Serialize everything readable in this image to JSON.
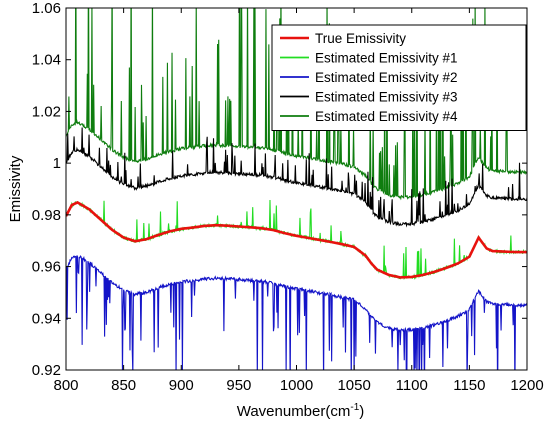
{
  "chart_data": {
    "type": "line",
    "title": "",
    "xlabel": "Wavenumber(cm",
    "xlabel_sup": "-1",
    "xlabel_suffix": ")",
    "ylabel": "Emissivity",
    "xlim": [
      800,
      1200
    ],
    "ylim": [
      0.92,
      1.06
    ],
    "x_ticks": [
      "800",
      "850",
      "900",
      "950",
      "1000",
      "1050",
      "1100",
      "1150",
      "1200"
    ],
    "y_ticks": [
      "0.92",
      "0.94",
      "0.96",
      "0.98",
      "1",
      "1.02",
      "1.04",
      "1.06"
    ],
    "grid": false,
    "legend_position": "top-right",
    "series": [
      {
        "name": "True Emissivity",
        "color": "#e8120e",
        "x": [
          800,
          805,
          810,
          820,
          830,
          840,
          850,
          860,
          870,
          880,
          890,
          900,
          910,
          920,
          930,
          940,
          950,
          960,
          970,
          980,
          990,
          1000,
          1010,
          1020,
          1030,
          1040,
          1050,
          1060,
          1065,
          1070,
          1080,
          1090,
          1100,
          1110,
          1120,
          1130,
          1140,
          1150,
          1158,
          1165,
          1170,
          1180,
          1190,
          1200
        ],
        "values": [
          0.9795,
          0.9838,
          0.9848,
          0.9822,
          0.9782,
          0.9742,
          0.9712,
          0.9698,
          0.9706,
          0.9722,
          0.9736,
          0.9746,
          0.9751,
          0.9757,
          0.976,
          0.9758,
          0.9755,
          0.9752,
          0.9748,
          0.9741,
          0.9729,
          0.9719,
          0.9711,
          0.9703,
          0.9695,
          0.9686,
          0.9676,
          0.9642,
          0.9612,
          0.9588,
          0.9568,
          0.9558,
          0.956,
          0.9568,
          0.958,
          0.9595,
          0.9612,
          0.9638,
          0.9712,
          0.967,
          0.966,
          0.9658,
          0.9656,
          0.9656
        ]
      },
      {
        "name": "Estimated Emissivity #1",
        "color": "#22dd22",
        "offset": 0.0,
        "spike_direction": "up",
        "spike_count": 35,
        "spike_height_max": 0.012
      },
      {
        "name": "Estimated Emissivity #2",
        "color": "#1414c8",
        "offset": -0.0205,
        "spike_direction": "down",
        "spike_count": 90,
        "spike_height_max": 0.04
      },
      {
        "name": "Estimated Emissivity #3",
        "color": "#000000",
        "offset": 0.0205,
        "spike_direction": "up",
        "spike_count": 100,
        "spike_height_max": 0.015
      },
      {
        "name": "Estimated Emissivity #4",
        "color": "#0e7d0e",
        "offset": 0.031,
        "spike_direction": "up",
        "spike_count": 110,
        "spike_height_max": 0.08
      }
    ]
  }
}
